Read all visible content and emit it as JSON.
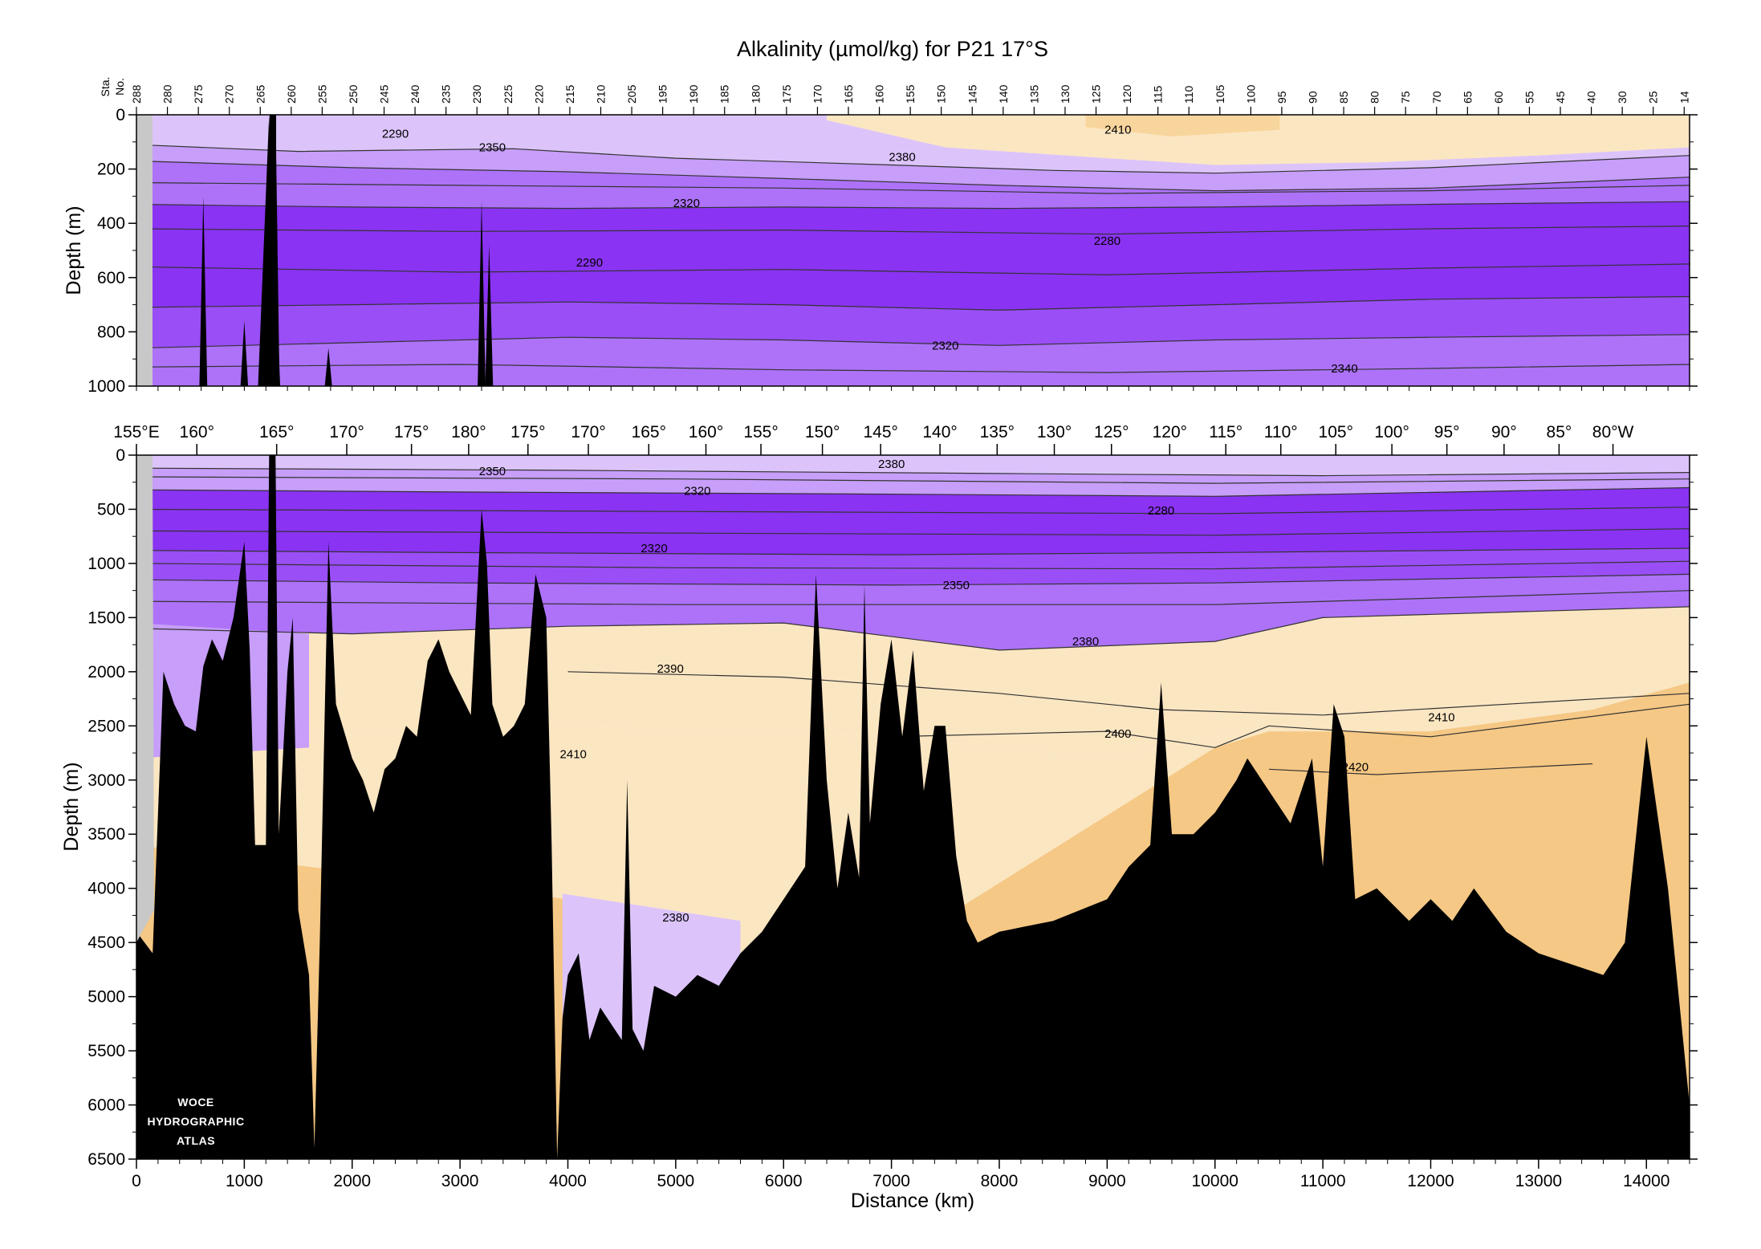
{
  "title": "Alkalinity (µmol/kg) for P21 17°S",
  "station_axis_label": [
    "Sta.",
    "No."
  ],
  "top_panel": {
    "ylabel": "Depth (m)",
    "ylim": [
      0,
      1000
    ],
    "y_ticks": [
      "0",
      "200",
      "400",
      "600",
      "800",
      "1000"
    ]
  },
  "bottom_panel": {
    "ylabel": "Depth (m)",
    "ylim": [
      0,
      6500
    ],
    "y_ticks": [
      "0",
      "500",
      "1000",
      "1500",
      "2000",
      "2500",
      "3000",
      "3500",
      "4000",
      "4500",
      "5000",
      "5500",
      "6000",
      "6500"
    ]
  },
  "xlabel": "Distance (km)",
  "xlim": [
    0,
    14400
  ],
  "x_ticks": [
    "0",
    "1000",
    "2000",
    "3000",
    "4000",
    "5000",
    "6000",
    "7000",
    "8000",
    "9000",
    "10000",
    "11000",
    "12000",
    "13000",
    "14000"
  ],
  "longitude_labels": [
    "155°E",
    "160°",
    "165°",
    "170°",
    "175°",
    "180°",
    "175°",
    "170°",
    "165°",
    "160°",
    "155°",
    "150°",
    "145°",
    "140°",
    "135°",
    "130°",
    "125°",
    "120°",
    "115°",
    "110°",
    "105°",
    "100°",
    "95°",
    "90°",
    "85°",
    "80°W"
  ],
  "station_numbers": [
    "288",
    "280",
    "275",
    "270",
    "265",
    "260",
    "255",
    "250",
    "245",
    "240",
    "235",
    "230",
    "225",
    "220",
    "215",
    "210",
    "205",
    "195",
    "190",
    "185",
    "180",
    "175",
    "170",
    "165",
    "160",
    "155",
    "150",
    "145",
    "140",
    "135",
    "130",
    "125",
    "120",
    "115",
    "110",
    "105",
    "100",
    "95",
    "90",
    "85",
    "80",
    "75",
    "70",
    "65",
    "60",
    "55",
    "45",
    "40",
    "30",
    "25",
    "14"
  ],
  "logo": [
    "WOCE",
    "HYDROGRAPHIC",
    "ATLAS"
  ],
  "colors": {
    "band_2260": "#8a33f2",
    "band_2290": "#9a4ef6",
    "band_2320": "#ad72f8",
    "band_2350": "#c79ef9",
    "band_2380": "#dcc4fb",
    "band_2390": "#fbe6c2",
    "band_2410": "#f8d59c",
    "band_2420": "#f5c885",
    "bathymetry": "#000000",
    "coast": "#c8c8c8",
    "contour": "#333333"
  },
  "chart_data": [
    {
      "type": "heatmap",
      "title": "Alkalinity (µmol/kg) for P21 17°S",
      "xlabel": "",
      "ylabel": "Depth (m)",
      "xlim": [
        0,
        14400
      ],
      "ylim": [
        1000,
        0
      ],
      "variable": "Alkalinity (µmol/kg)",
      "contour_labels": [
        {
          "value": "2290",
          "x": 2400,
          "y": 70
        },
        {
          "value": "2350",
          "x": 3300,
          "y": 120
        },
        {
          "value": "2410",
          "x": 9100,
          "y": 55
        },
        {
          "value": "2380",
          "x": 7100,
          "y": 155
        },
        {
          "value": "2320",
          "x": 5100,
          "y": 325
        },
        {
          "value": "2280",
          "x": 9000,
          "y": 465
        },
        {
          "value": "2290",
          "x": 4200,
          "y": 545
        },
        {
          "value": "2320",
          "x": 7500,
          "y": 850
        },
        {
          "value": "2340",
          "x": 11200,
          "y": 935
        }
      ]
    },
    {
      "type": "heatmap",
      "title": "",
      "xlabel": "Distance (km)",
      "ylabel": "Depth (m)",
      "xlim": [
        0,
        14400
      ],
      "ylim": [
        6500,
        0
      ],
      "variable": "Alkalinity (µmol/kg)",
      "contour_labels": [
        {
          "value": "2380",
          "x": 7000,
          "y": 80
        },
        {
          "value": "2350",
          "x": 3300,
          "y": 150
        },
        {
          "value": "2320",
          "x": 5200,
          "y": 330
        },
        {
          "value": "2280",
          "x": 9500,
          "y": 510
        },
        {
          "value": "2320",
          "x": 4800,
          "y": 860
        },
        {
          "value": "2350",
          "x": 7600,
          "y": 1200
        },
        {
          "value": "2380",
          "x": 8800,
          "y": 1720
        },
        {
          "value": "2390",
          "x": 4950,
          "y": 1970
        },
        {
          "value": "2410",
          "x": 12100,
          "y": 2420
        },
        {
          "value": "2400",
          "x": 9100,
          "y": 2570
        },
        {
          "value": "2410",
          "x": 4050,
          "y": 2760
        },
        {
          "value": "2420",
          "x": 11300,
          "y": 2880
        },
        {
          "value": "2380",
          "x": 5000,
          "y": 4270
        }
      ]
    }
  ]
}
